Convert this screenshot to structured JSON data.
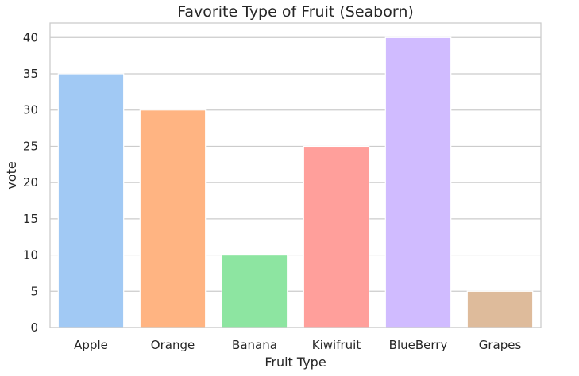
{
  "chart_data": {
    "type": "bar",
    "title": "Favorite Type of Fruit (Seaborn)",
    "xlabel": "Fruit Type",
    "ylabel": "vote",
    "categories": [
      "Apple",
      "Orange",
      "Banana",
      "Kiwifruit",
      "BlueBerry",
      "Grapes"
    ],
    "values": [
      35,
      30,
      10,
      25,
      40,
      5
    ],
    "ylim": [
      0,
      42
    ],
    "yticks": [
      0,
      5,
      10,
      15,
      20,
      25,
      30,
      35,
      40
    ],
    "grid": true,
    "colors": [
      "#a1c9f4",
      "#ffb482",
      "#8de5a1",
      "#ff9f9b",
      "#d0bbff",
      "#debb9b"
    ]
  }
}
